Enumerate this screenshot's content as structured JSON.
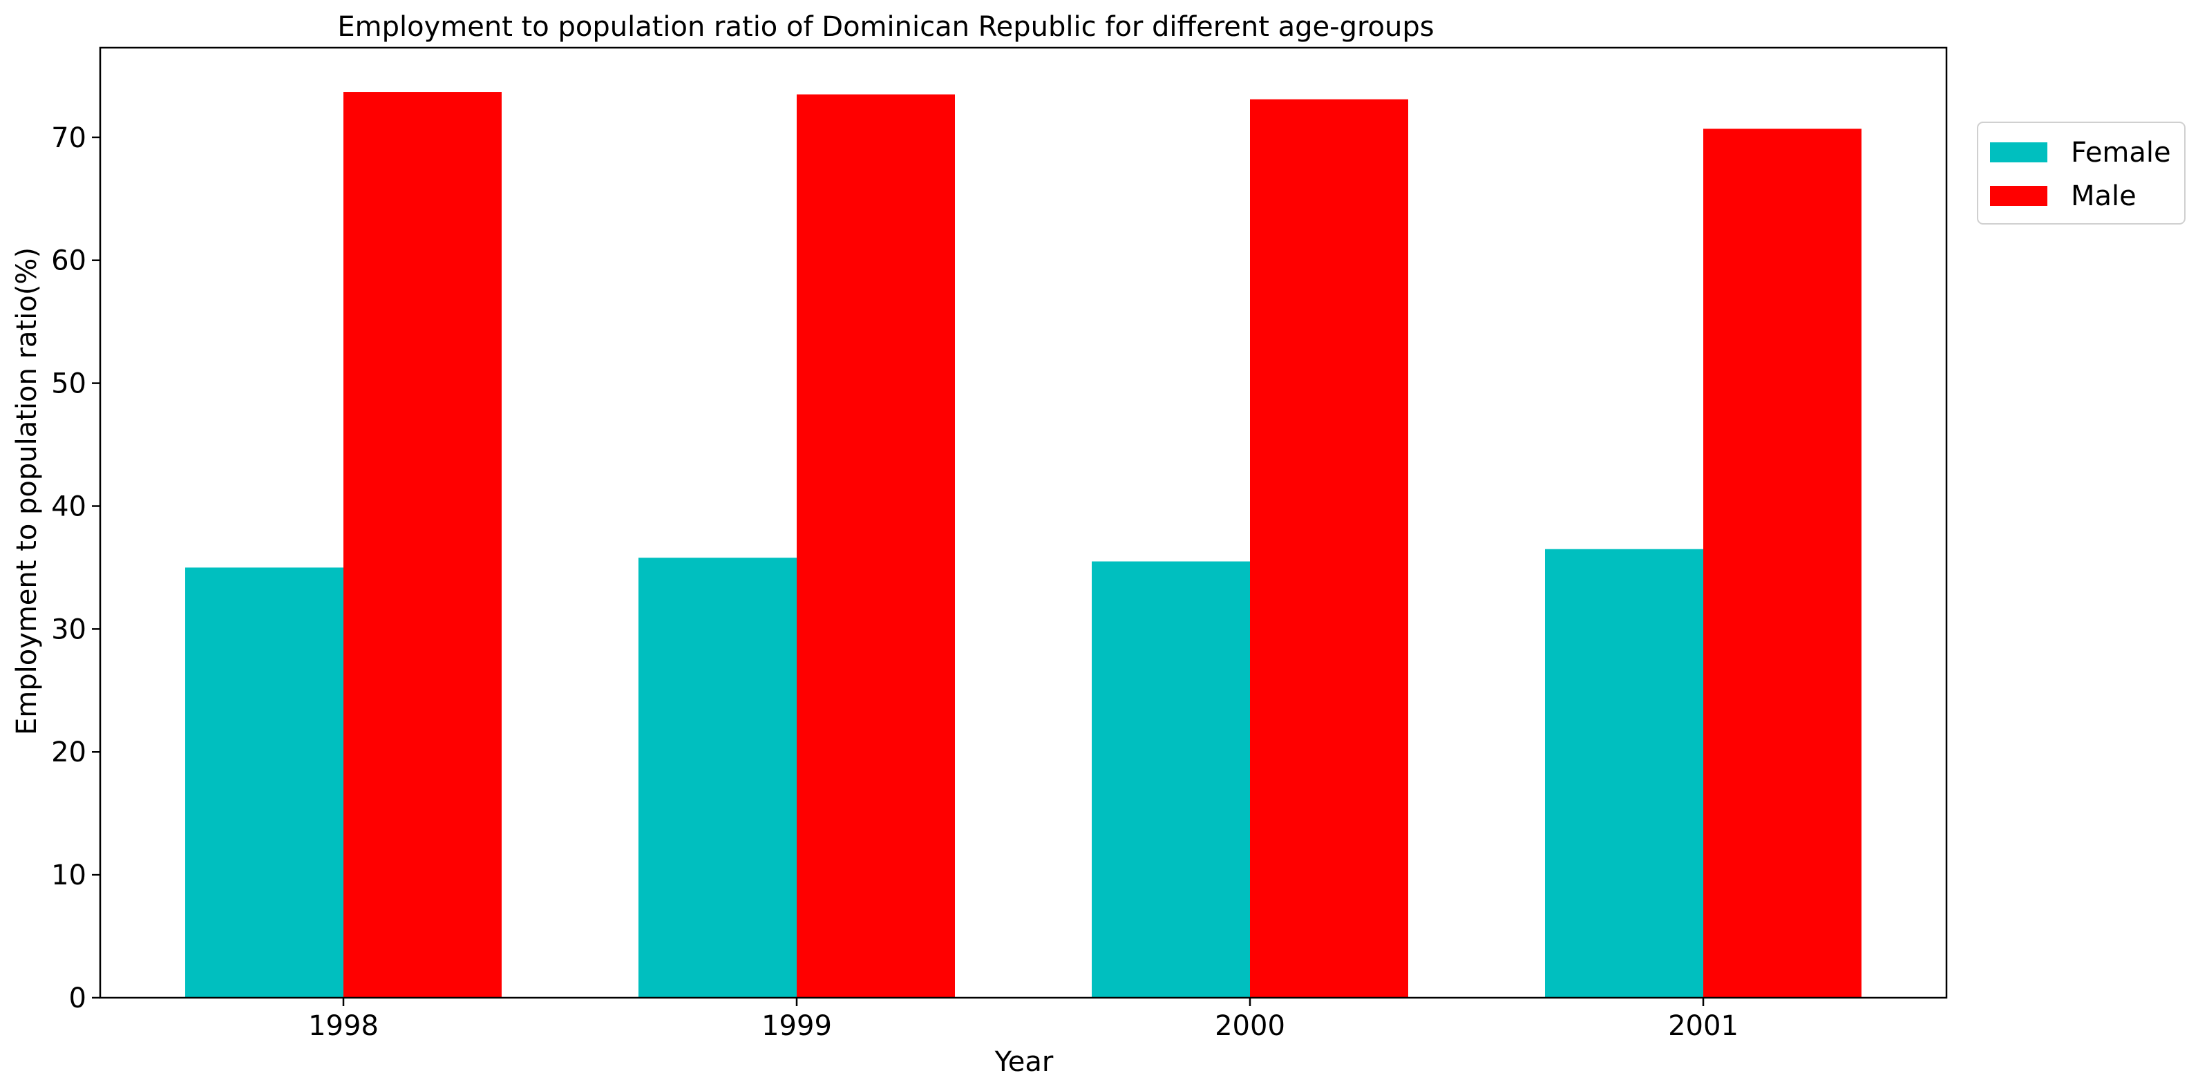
{
  "chart_data": {
    "type": "bar",
    "title": "Employment to population ratio of Dominican Republic for different age-groups",
    "xlabel": "Year",
    "ylabel": "Employment to population ratio(%)",
    "categories": [
      "1998",
      "1999",
      "2000",
      "2001"
    ],
    "series": [
      {
        "name": "Female",
        "color": "#00bfbf",
        "values": [
          35.0,
          35.8,
          35.5,
          36.5
        ]
      },
      {
        "name": "Male",
        "color": "#ff0000",
        "values": [
          73.7,
          73.5,
          73.1,
          70.7
        ]
      }
    ],
    "ylim": [
      0,
      77.3
    ],
    "yticks": [
      0,
      10,
      20,
      30,
      40,
      50,
      60,
      70
    ],
    "grid": false,
    "legend": "outside-top-right"
  }
}
